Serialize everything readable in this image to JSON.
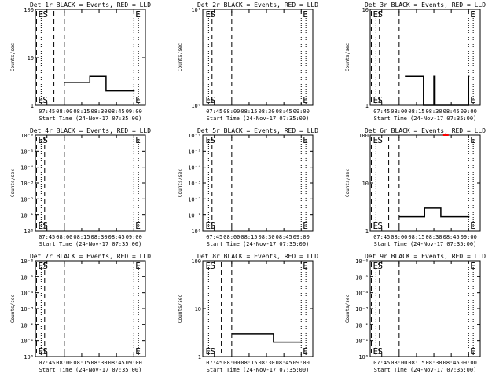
{
  "chart_data": [
    {
      "type": "line",
      "title": "Det 1r BLACK = Events, RED = LLD",
      "xlabel": "Start Time (24-Nov-17 07:35:00)",
      "ylabel": "Counts/sec",
      "xlim": [
        "07:35",
        "09:10"
      ],
      "xticks": [
        "07:45",
        "08:00",
        "08:15",
        "08:30",
        "08:45",
        "09:00"
      ],
      "yscale": "log",
      "ylim": [
        1,
        100
      ],
      "yticks": [
        "1",
        "10",
        "100"
      ],
      "markers": [
        {
          "label": "E",
          "time": "07:36",
          "style": "dashed"
        },
        {
          "label": "S",
          "time": "07:40",
          "style": "dotted"
        },
        {
          "label": "",
          "time": "07:51",
          "style": "dashed"
        },
        {
          "label": "",
          "time": "08:00",
          "style": "dashed"
        },
        {
          "label": "E",
          "time": "09:00",
          "style": "dotted"
        },
        {
          "label": "",
          "time": "09:04",
          "style": "dotted"
        }
      ],
      "series": [
        {
          "color": "#000000",
          "x": [
            "08:00",
            "08:20",
            "08:22",
            "08:36",
            "08:37",
            "09:00"
          ],
          "y": [
            3,
            3,
            4,
            2,
            2,
            2
          ]
        }
      ]
    },
    {
      "type": "line",
      "title": "Det 2r BLACK = Events, RED = LLD",
      "xlabel": "Start Time (24-Nov-17 07:35:00)",
      "ylabel": "Counts/sec",
      "xlim": [
        "07:35",
        "09:10"
      ],
      "xticks": [
        "07:45",
        "08:00",
        "08:15",
        "08:30",
        "08:45",
        "09:00"
      ],
      "yscale": "log",
      "ylim": [
        1,
        10
      ],
      "yticks": [
        "10⁰",
        "10¹"
      ],
      "markers": [
        {
          "label": "E",
          "time": "07:36",
          "style": "dashed"
        },
        {
          "label": "S",
          "time": "07:40",
          "style": "dotted"
        },
        {
          "label": "",
          "time": "07:43",
          "style": "dashed"
        },
        {
          "label": "",
          "time": "08:00",
          "style": "dashed"
        },
        {
          "label": "E",
          "time": "09:00",
          "style": "dotted"
        },
        {
          "label": "",
          "time": "09:04",
          "style": "dotted"
        }
      ],
      "series": []
    },
    {
      "type": "line",
      "title": "Det 3r BLACK = Events, RED = LLD",
      "xlabel": "Start Time (24-Nov-17 07:35:00)",
      "ylabel": "Counts/sec",
      "xlim": [
        "07:35",
        "09:10"
      ],
      "xticks": [
        "07:45",
        "08:00",
        "08:15",
        "08:30",
        "08:45",
        "09:00"
      ],
      "yscale": "log",
      "ylim": [
        1,
        10
      ],
      "yticks": [
        "1",
        "10"
      ],
      "markers": [
        {
          "label": "E",
          "time": "07:36",
          "style": "dashed"
        },
        {
          "label": "S",
          "time": "07:40",
          "style": "dotted"
        },
        {
          "label": "",
          "time": "07:43",
          "style": "dashed"
        },
        {
          "label": "",
          "time": "08:00",
          "style": "dashed"
        },
        {
          "label": "E",
          "time": "09:00",
          "style": "dotted"
        },
        {
          "label": "",
          "time": "09:04",
          "style": "dotted"
        }
      ],
      "series": [
        {
          "color": "#000000",
          "x": [
            "08:05",
            "08:20",
            "08:21",
            "08:30",
            "08:31",
            "09:00"
          ],
          "y": [
            2,
            2,
            1,
            2,
            1,
            2
          ]
        }
      ]
    },
    {
      "type": "line",
      "title": "Det 4r BLACK = Events, RED = LLD",
      "xlabel": "Start Time (24-Nov-17 07:35:00)",
      "ylabel": "Counts/sec",
      "xlim": [
        "07:35",
        "09:10"
      ],
      "xticks": [
        "07:45",
        "08:00",
        "08:15",
        "08:30",
        "08:45",
        "09:00"
      ],
      "yscale": "log",
      "ylim": [
        1,
        1000000
      ],
      "yticks": [
        "10⁰",
        "10⁻¹",
        "10⁻²",
        "10⁻³",
        "10⁻⁴",
        "10⁻⁵",
        "10⁻⁶"
      ],
      "markers": [
        {
          "label": "E",
          "time": "07:36",
          "style": "dashed"
        },
        {
          "label": "S",
          "time": "07:40",
          "style": "dotted"
        },
        {
          "label": "",
          "time": "07:43",
          "style": "dashed"
        },
        {
          "label": "",
          "time": "08:00",
          "style": "dashed"
        },
        {
          "label": "E",
          "time": "09:00",
          "style": "dotted"
        },
        {
          "label": "",
          "time": "09:04",
          "style": "dotted"
        }
      ],
      "series": []
    },
    {
      "type": "line",
      "title": "Det 5r BLACK = Events, RED = LLD",
      "xlabel": "Start Time (24-Nov-17 07:35:00)",
      "ylabel": "Counts/sec",
      "xlim": [
        "07:35",
        "09:10"
      ],
      "xticks": [
        "07:45",
        "08:00",
        "08:15",
        "08:30",
        "08:45",
        "09:00"
      ],
      "yscale": "log",
      "ylim": [
        1,
        1000000
      ],
      "yticks": [
        "10⁰",
        "10⁻¹",
        "10⁻²",
        "10⁻³",
        "10⁻⁴",
        "10⁻⁵",
        "10⁻⁶"
      ],
      "markers": [
        {
          "label": "E",
          "time": "07:36",
          "style": "dashed"
        },
        {
          "label": "S",
          "time": "07:40",
          "style": "dotted"
        },
        {
          "label": "",
          "time": "07:43",
          "style": "dashed"
        },
        {
          "label": "",
          "time": "08:00",
          "style": "dashed"
        },
        {
          "label": "E",
          "time": "09:00",
          "style": "dotted"
        },
        {
          "label": "",
          "time": "09:04",
          "style": "dotted"
        }
      ],
      "series": []
    },
    {
      "type": "line",
      "title": "Det 6r BLACK = Events, RED = LLD",
      "xlabel": "Start Time (24-Nov-17 07:35:00)",
      "ylabel": "Counts/sec",
      "xlim": [
        "07:35",
        "09:10"
      ],
      "xticks": [
        "07:45",
        "08:00",
        "08:15",
        "08:30",
        "08:45",
        "09:00"
      ],
      "yscale": "log",
      "ylim": [
        1,
        100
      ],
      "yticks": [
        "1",
        "10",
        "100"
      ],
      "markers": [
        {
          "label": "E",
          "time": "07:36",
          "style": "dashed"
        },
        {
          "label": "S",
          "time": "07:40",
          "style": "dotted"
        },
        {
          "label": "",
          "time": "07:51",
          "style": "dashed"
        },
        {
          "label": "",
          "time": "08:00",
          "style": "dashed"
        },
        {
          "label": "E",
          "time": "09:00",
          "style": "dotted"
        },
        {
          "label": "",
          "time": "09:04",
          "style": "dotted"
        }
      ],
      "series": [
        {
          "color": "#000000",
          "x": [
            "08:00",
            "08:20",
            "08:22",
            "08:36",
            "08:37",
            "09:00"
          ],
          "y": [
            2,
            2,
            3,
            2,
            2,
            2
          ]
        },
        {
          "color": "#ff0000",
          "x": [
            "08:38",
            "08:42"
          ],
          "y": [
            100,
            100
          ]
        }
      ]
    },
    {
      "type": "line",
      "title": "Det 7r BLACK = Events, RED = LLD",
      "xlabel": "Start Time (24-Nov-17 07:35:00)",
      "ylabel": "Counts/sec",
      "xlim": [
        "07:35",
        "09:10"
      ],
      "xticks": [
        "07:45",
        "08:00",
        "08:15",
        "08:30",
        "08:45",
        "09:00"
      ],
      "yscale": "log",
      "ylim": [
        1,
        1000000
      ],
      "yticks": [
        "10⁰",
        "10⁻¹",
        "10⁻²",
        "10⁻³",
        "10⁻⁴",
        "10⁻⁵",
        "10⁻⁶"
      ],
      "markers": [
        {
          "label": "E",
          "time": "07:36",
          "style": "dashed"
        },
        {
          "label": "S",
          "time": "07:40",
          "style": "dotted"
        },
        {
          "label": "",
          "time": "07:43",
          "style": "dashed"
        },
        {
          "label": "",
          "time": "08:00",
          "style": "dashed"
        },
        {
          "label": "E",
          "time": "09:00",
          "style": "dotted"
        },
        {
          "label": "",
          "time": "09:04",
          "style": "dotted"
        }
      ],
      "series": []
    },
    {
      "type": "line",
      "title": "Det 8r BLACK = Events, RED = LLD",
      "xlabel": "Start Time (24-Nov-17 07:35:00)",
      "ylabel": "Counts/sec",
      "xlim": [
        "07:35",
        "09:10"
      ],
      "xticks": [
        "07:45",
        "08:00",
        "08:15",
        "08:30",
        "08:45",
        "09:00"
      ],
      "yscale": "log",
      "ylim": [
        1,
        100
      ],
      "yticks": [
        "1",
        "10",
        "100"
      ],
      "markers": [
        {
          "label": "E",
          "time": "07:36",
          "style": "dashed"
        },
        {
          "label": "S",
          "time": "07:40",
          "style": "dotted"
        },
        {
          "label": "",
          "time": "07:51",
          "style": "dashed"
        },
        {
          "label": "",
          "time": "08:00",
          "style": "dashed"
        },
        {
          "label": "E",
          "time": "09:00",
          "style": "dotted"
        },
        {
          "label": "",
          "time": "09:04",
          "style": "dotted"
        }
      ],
      "series": [
        {
          "color": "#000000",
          "x": [
            "08:00",
            "08:20",
            "08:22",
            "08:36",
            "08:37",
            "09:00"
          ],
          "y": [
            3,
            3,
            3,
            2,
            2,
            2
          ]
        }
      ]
    },
    {
      "type": "line",
      "title": "Det 9r BLACK = Events, RED = LLD",
      "xlabel": "Start Time (24-Nov-17 07:35:00)",
      "ylabel": "Counts/sec",
      "xlim": [
        "07:35",
        "09:10"
      ],
      "xticks": [
        "07:45",
        "08:00",
        "08:15",
        "08:30",
        "08:45",
        "09:00"
      ],
      "yscale": "log",
      "ylim": [
        1,
        1000000
      ],
      "yticks": [
        "10⁰",
        "10⁻¹",
        "10⁻²",
        "10⁻³",
        "10⁻⁴",
        "10⁻⁵",
        "10⁻⁶"
      ],
      "markers": [
        {
          "label": "E",
          "time": "07:36",
          "style": "dashed"
        },
        {
          "label": "S",
          "time": "07:40",
          "style": "dotted"
        },
        {
          "label": "",
          "time": "07:43",
          "style": "dashed"
        },
        {
          "label": "",
          "time": "08:00",
          "style": "dashed"
        },
        {
          "label": "E",
          "time": "09:00",
          "style": "dotted"
        },
        {
          "label": "",
          "time": "09:04",
          "style": "dotted"
        }
      ],
      "series": []
    }
  ]
}
